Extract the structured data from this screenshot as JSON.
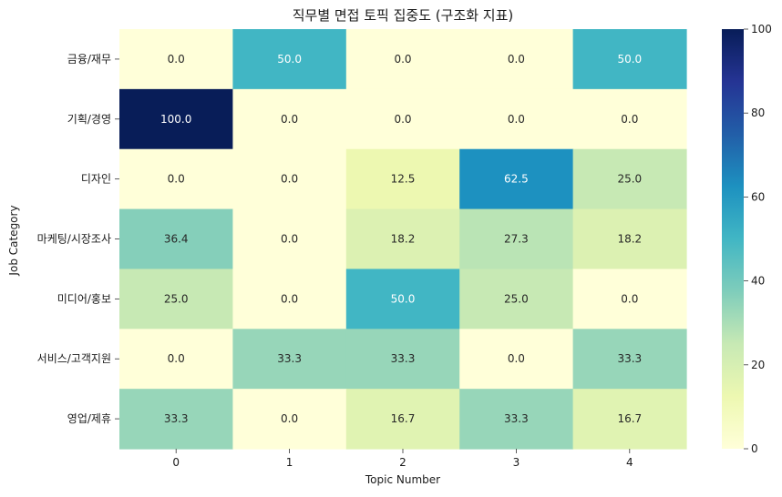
{
  "chart_data": {
    "type": "heatmap",
    "title": "직무별 면접 토픽 집중도 (구조화 지표)",
    "xlabel": "Topic Number",
    "ylabel": "Job Category",
    "x_categories": [
      "0",
      "1",
      "2",
      "3",
      "4"
    ],
    "y_categories": [
      "금융/재무",
      "기획/경영",
      "디자인",
      "마케팅/시장조사",
      "미디어/홍보",
      "서비스/고객지원",
      "영업/제휴"
    ],
    "values": [
      [
        0.0,
        50.0,
        0.0,
        0.0,
        50.0
      ],
      [
        100.0,
        0.0,
        0.0,
        0.0,
        0.0
      ],
      [
        0.0,
        0.0,
        12.5,
        62.5,
        25.0
      ],
      [
        36.4,
        0.0,
        18.2,
        27.3,
        18.2
      ],
      [
        25.0,
        0.0,
        50.0,
        25.0,
        0.0
      ],
      [
        0.0,
        33.3,
        33.3,
        0.0,
        33.3
      ],
      [
        33.3,
        0.0,
        16.7,
        33.3,
        16.7
      ]
    ],
    "value_format": "0.0",
    "colorbar": {
      "range": [
        0,
        100
      ],
      "ticks": [
        0,
        20,
        40,
        60,
        80,
        100
      ],
      "colormap": "YlGnBu"
    }
  }
}
